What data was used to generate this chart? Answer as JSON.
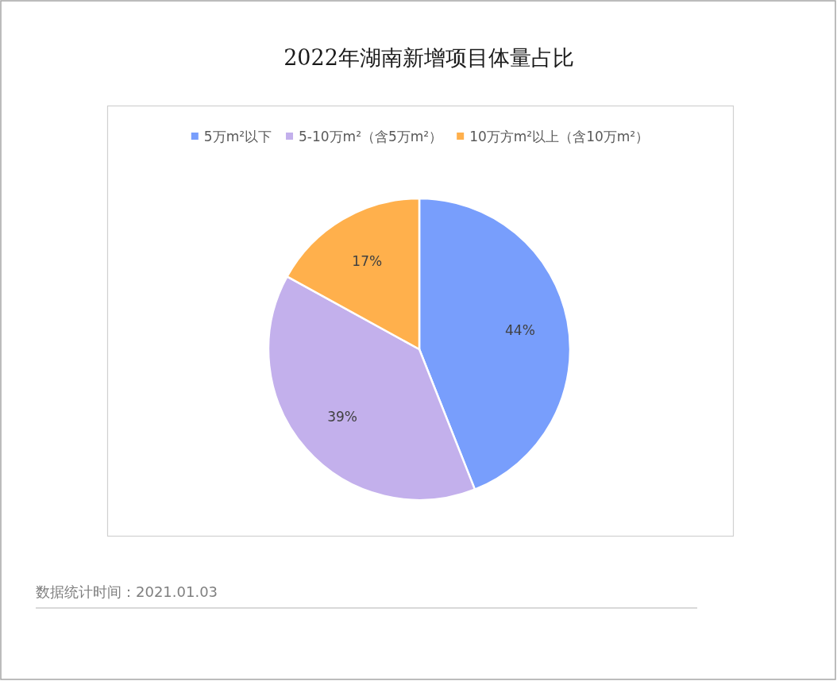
{
  "chart_data": {
    "type": "pie",
    "title": "2022年湖南新增项目体量占比",
    "categories": [
      "5万m²以下",
      "5-10万m²（含5万m²）",
      "10万方m²以上（含10万m²）"
    ],
    "values": [
      44,
      39,
      17
    ],
    "colors": [
      "#789efc",
      "#c3b0ec",
      "#ffb04c"
    ],
    "value_labels": [
      "44%",
      "39%",
      "17%"
    ],
    "legend": "top",
    "annotations": [
      "数据统计时间：2021.01.03"
    ]
  }
}
